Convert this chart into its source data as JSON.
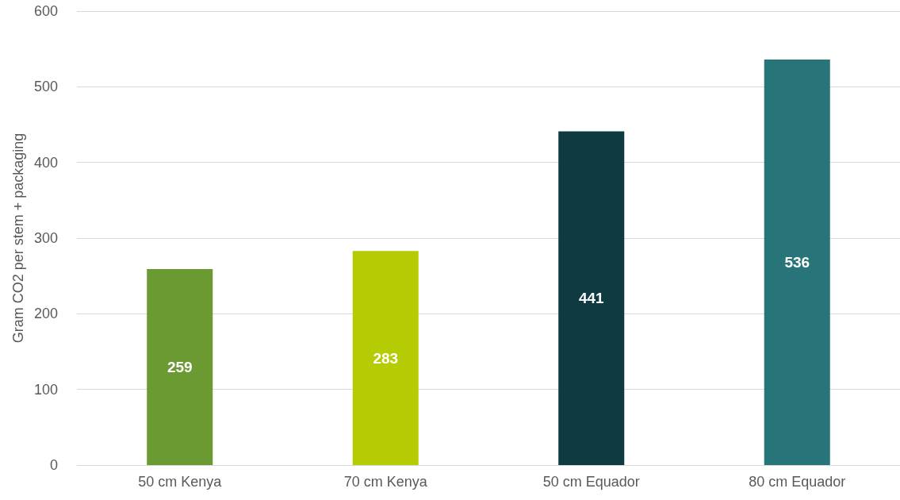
{
  "chart_data": {
    "type": "bar",
    "ylabel": "Gram CO2 per stem + packaging",
    "categories": [
      "50 cm Kenya",
      "70 cm Kenya",
      "50 cm Equador",
      "80 cm Equador"
    ],
    "values": [
      259,
      283,
      441,
      536
    ],
    "colors": [
      "#6b9a33",
      "#b5cb04",
      "#103a41",
      "#287579"
    ],
    "ylim": [
      0,
      600
    ],
    "yticks": [
      0,
      100,
      200,
      300,
      400,
      500,
      600
    ],
    "grid": "y",
    "data_labels": true
  }
}
